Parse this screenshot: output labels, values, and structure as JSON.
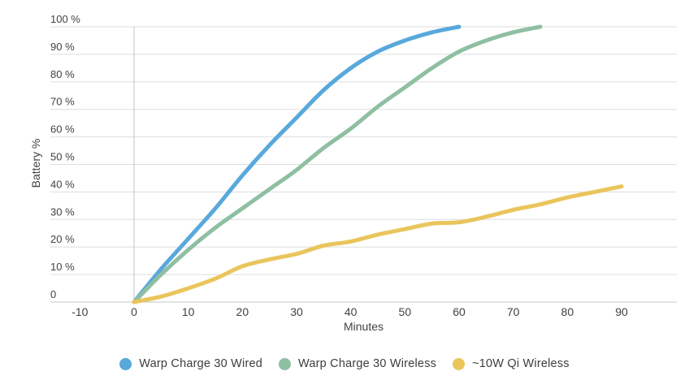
{
  "chart_data": {
    "type": "line",
    "title": "",
    "xlabel": "Minutes",
    "ylabel": "Battery %",
    "grid": true,
    "legend_position": "bottom",
    "xlim": [
      -15.5,
      100
    ],
    "ylim": [
      0,
      100
    ],
    "x_ticks": [
      -10,
      0,
      10,
      20,
      30,
      40,
      50,
      60,
      70,
      80,
      90
    ],
    "x_tick_labels": [
      "-10",
      "0",
      "10",
      "20",
      "30",
      "40",
      "50",
      "60",
      "70",
      "80",
      "90"
    ],
    "y_ticks": [
      0,
      10,
      20,
      30,
      40,
      50,
      60,
      70,
      80,
      90,
      100
    ],
    "y_tick_labels": [
      "0",
      "10 %",
      "20 %",
      "30 %",
      "40 %",
      "50 %",
      "60 %",
      "70 %",
      "80 %",
      "90 %",
      "100 %"
    ],
    "series": [
      {
        "name": "Warp Charge 30 Wired",
        "color": "#58A8DC",
        "x": [
          0,
          5,
          10,
          15,
          20,
          25,
          30,
          35,
          40,
          45,
          50,
          55,
          60
        ],
        "values": [
          0,
          12,
          23,
          34,
          46,
          57,
          67,
          77,
          85,
          91,
          95,
          98,
          100
        ]
      },
      {
        "name": "Warp Charge 30 Wireless",
        "color": "#8FBFA3",
        "x": [
          0,
          5,
          10,
          15,
          20,
          25,
          30,
          35,
          40,
          45,
          50,
          55,
          60,
          65,
          70,
          75
        ],
        "values": [
          0,
          10,
          19,
          27,
          34,
          41,
          48,
          56,
          63,
          71,
          78,
          85,
          91,
          95,
          98,
          100
        ]
      },
      {
        "name": "~10W Qi Wireless",
        "color": "#EAC55C",
        "x": [
          0,
          5,
          10,
          15,
          20,
          25,
          30,
          35,
          40,
          45,
          50,
          55,
          60,
          65,
          70,
          75,
          80,
          85,
          90
        ],
        "values": [
          0,
          2,
          5,
          8.5,
          13,
          15.5,
          17.5,
          20.5,
          22,
          24.5,
          26.5,
          28.5,
          29,
          31,
          33.5,
          35.5,
          38,
          40,
          42
        ]
      }
    ]
  },
  "colors": {
    "grid": "#DEDEDE",
    "axis": "#C6C6C6",
    "tick_text": "#424242",
    "legend_text": "#3D3D3D",
    "background": "#FFFFFF"
  }
}
